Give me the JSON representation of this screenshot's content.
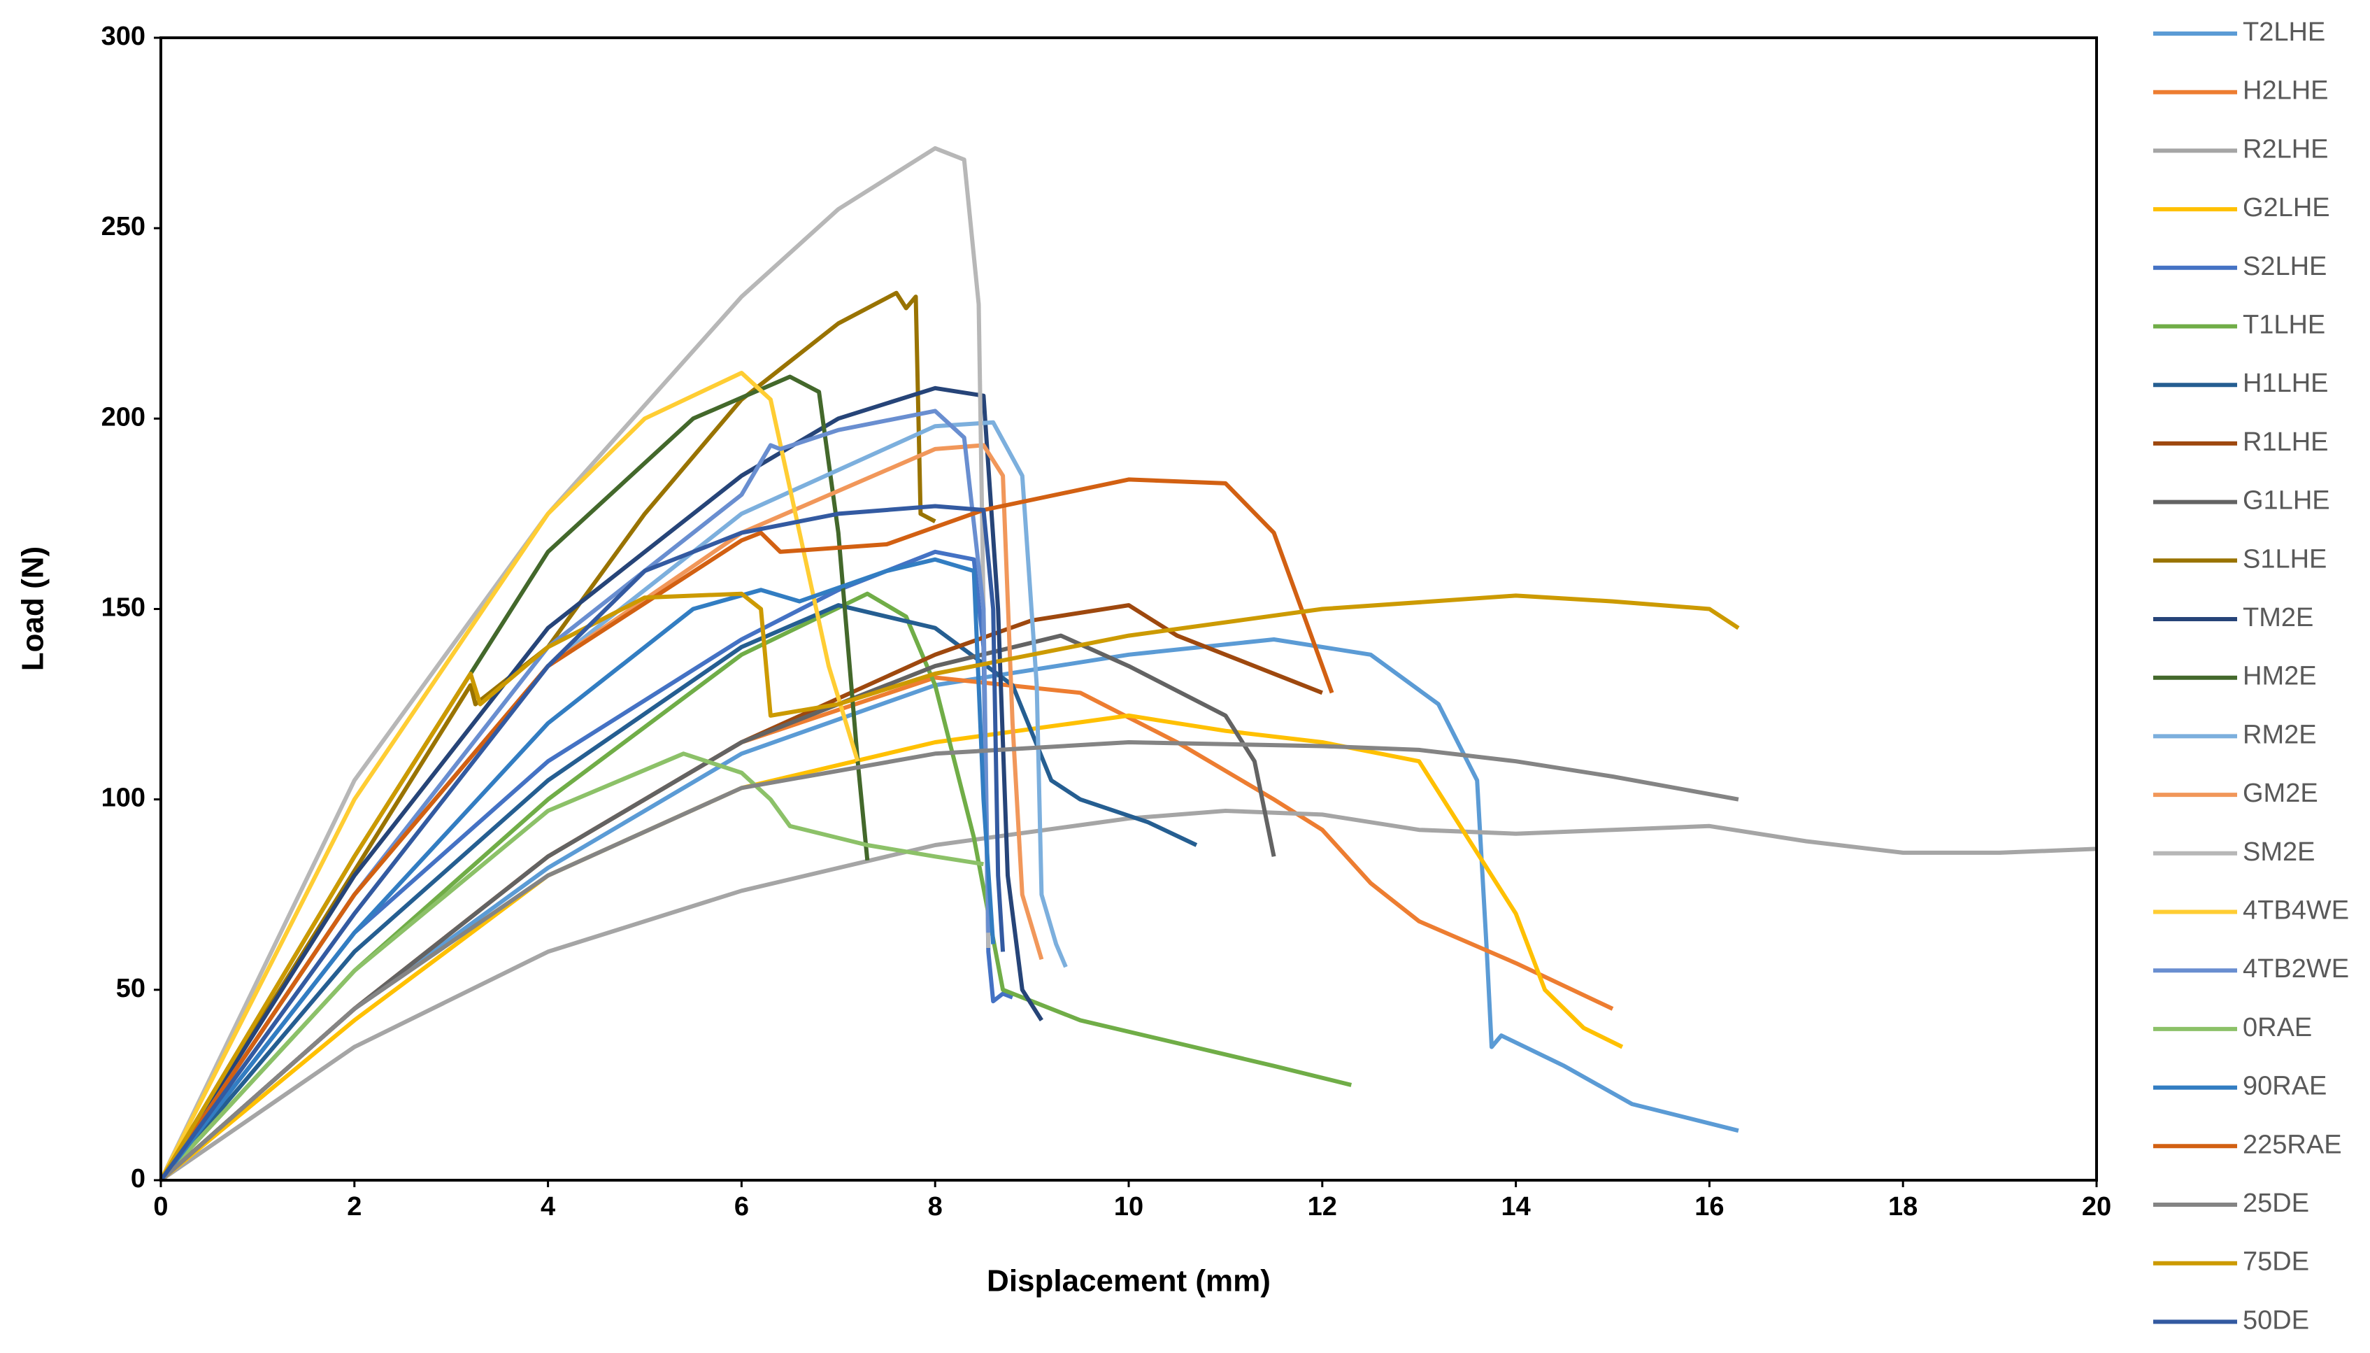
{
  "chart_data": {
    "type": "line",
    "xlabel": "Displacement (mm)",
    "ylabel": "Load (N)",
    "xlim": [
      0,
      20
    ],
    "xticks": [
      0,
      2,
      4,
      6,
      8,
      10,
      12,
      14,
      16,
      18,
      20
    ],
    "ylim": [
      0,
      300
    ],
    "yticks": [
      0,
      50,
      100,
      150,
      200,
      250,
      300
    ],
    "grid": false,
    "legend": "right",
    "series": [
      {
        "name": "T2LHE",
        "color": "#5B9BD5",
        "x": [
          0,
          2,
          4,
          6,
          8,
          10,
          11.5,
          12.5,
          13.2,
          13.6,
          13.7,
          13.75,
          13.85,
          14.5,
          15.2,
          16.3
        ],
        "values": [
          0,
          45,
          82,
          112,
          130,
          138,
          142,
          138,
          125,
          105,
          60,
          35,
          38,
          30,
          20,
          13
        ]
      },
      {
        "name": "H2LHE",
        "color": "#ED7D31",
        "x": [
          0,
          2,
          4,
          6,
          8,
          9.5,
          10.5,
          11.5,
          12,
          12.5,
          13,
          14,
          15
        ],
        "values": [
          0,
          45,
          85,
          115,
          132,
          128,
          115,
          100,
          92,
          78,
          68,
          57,
          45
        ]
      },
      {
        "name": "R2LHE",
        "color": "#A5A5A5",
        "x": [
          0,
          2,
          4,
          6,
          8,
          10,
          11,
          12,
          13,
          14,
          15,
          16,
          17,
          18,
          19,
          20
        ],
        "values": [
          0,
          35,
          60,
          76,
          88,
          95,
          97,
          96,
          92,
          91,
          92,
          93,
          89,
          86,
          86,
          87
        ]
      },
      {
        "name": "G2LHE",
        "color": "#FFC000",
        "x": [
          0,
          2,
          4,
          6,
          8,
          10,
          11,
          12,
          13,
          13.5,
          14,
          14.3,
          14.7,
          15.1
        ],
        "values": [
          0,
          42,
          80,
          103,
          115,
          122,
          118,
          115,
          110,
          90,
          70,
          50,
          40,
          35
        ]
      },
      {
        "name": "S2LHE",
        "color": "#4472C4",
        "x": [
          0,
          2,
          4,
          6,
          7,
          8,
          8.4,
          8.5,
          8.55,
          8.6,
          8.7,
          8.8
        ],
        "values": [
          0,
          65,
          110,
          142,
          155,
          165,
          163,
          140,
          60,
          47,
          49,
          48
        ]
      },
      {
        "name": "T1LHE",
        "color": "#70AD47",
        "x": [
          0,
          2,
          4,
          6,
          7.3,
          7.7,
          8,
          8.4,
          8.7,
          9.5,
          10.5,
          11.5,
          12.3
        ],
        "values": [
          0,
          55,
          100,
          138,
          154,
          148,
          130,
          90,
          50,
          42,
          36,
          30,
          25
        ]
      },
      {
        "name": "H1LHE",
        "color": "#255E91",
        "x": [
          0,
          2,
          4,
          6,
          7,
          8,
          8.8,
          9.2,
          9.5,
          10.2,
          10.7
        ],
        "values": [
          0,
          60,
          105,
          140,
          151,
          145,
          130,
          105,
          100,
          94,
          88
        ]
      },
      {
        "name": "R1LHE",
        "color": "#9E480E",
        "x": [
          0,
          2,
          4,
          6,
          8,
          9,
          10,
          10.5,
          11,
          12
        ],
        "values": [
          0,
          45,
          85,
          115,
          138,
          147,
          151,
          143,
          138,
          128
        ]
      },
      {
        "name": "G1LHE",
        "color": "#636363",
        "x": [
          0,
          2,
          4,
          6,
          8,
          9.3,
          10,
          11,
          11.3,
          11.5
        ],
        "values": [
          0,
          45,
          85,
          115,
          135,
          143,
          135,
          122,
          110,
          85
        ]
      },
      {
        "name": "S1LHE",
        "color": "#997300",
        "x": [
          0,
          3.2,
          3.25,
          4,
          5,
          6,
          7,
          7.6,
          7.7,
          7.8,
          7.85,
          8
        ],
        "values": [
          0,
          130,
          125,
          140,
          175,
          205,
          225,
          233,
          229,
          232,
          175,
          173
        ]
      },
      {
        "name": "TM2E",
        "color": "#264478",
        "x": [
          0,
          2,
          4,
          6,
          7,
          8,
          8.5,
          8.65,
          8.75,
          8.9,
          9.1
        ],
        "values": [
          0,
          80,
          145,
          185,
          200,
          208,
          206,
          150,
          80,
          50,
          42
        ]
      },
      {
        "name": "HM2E",
        "color": "#43682B",
        "x": [
          0,
          2,
          4,
          5.5,
          6.5,
          6.8,
          7,
          7.2,
          7.3
        ],
        "values": [
          0,
          85,
          165,
          200,
          211,
          207,
          170,
          110,
          84
        ]
      },
      {
        "name": "RM2E",
        "color": "#7CAFDD",
        "x": [
          0,
          2,
          4,
          6,
          8,
          8.6,
          8.9,
          9.05,
          9.1,
          9.25,
          9.35
        ],
        "values": [
          0,
          75,
          135,
          175,
          198,
          199,
          185,
          130,
          75,
          62,
          56
        ]
      },
      {
        "name": "GM2E",
        "color": "#F1975A",
        "x": [
          0,
          2,
          4,
          6,
          8,
          8.5,
          8.7,
          8.8,
          8.9,
          9.1
        ],
        "values": [
          0,
          75,
          135,
          170,
          192,
          193,
          185,
          120,
          75,
          58
        ]
      },
      {
        "name": "SM2E",
        "color": "#B7B7B7",
        "x": [
          0,
          2,
          4,
          6,
          7,
          8,
          8.3,
          8.45,
          8.5,
          8.55
        ],
        "values": [
          0,
          105,
          175,
          232,
          255,
          271,
          268,
          230,
          150,
          61
        ]
      },
      {
        "name": "4TB4WE",
        "color": "#FFCD33",
        "x": [
          0,
          2,
          4,
          5,
          6,
          6.3,
          6.6,
          6.9,
          7.2
        ],
        "values": [
          0,
          100,
          175,
          200,
          212,
          205,
          170,
          135,
          110
        ]
      },
      {
        "name": "4TB2WE",
        "color": "#698ED0",
        "x": [
          0,
          2,
          4,
          6,
          6.3,
          6.4,
          7,
          8,
          8.3,
          8.5,
          8.55
        ],
        "values": [
          0,
          75,
          140,
          180,
          193,
          192,
          197,
          202,
          195,
          150,
          65
        ]
      },
      {
        "name": "0RAE",
        "color": "#8CC168",
        "x": [
          0,
          2,
          4,
          5.4,
          6,
          6.3,
          6.5,
          7.3,
          8,
          8.5
        ],
        "values": [
          0,
          55,
          97,
          112,
          107,
          100,
          93,
          88,
          85,
          83
        ]
      },
      {
        "name": "90RAE",
        "color": "#327DC2",
        "x": [
          0,
          2,
          4,
          5.5,
          6.2,
          6.6,
          7.5,
          8,
          8.4,
          8.5,
          8.6
        ],
        "values": [
          0,
          65,
          120,
          150,
          155,
          152,
          160,
          163,
          160,
          100,
          62
        ]
      },
      {
        "name": "225RAE",
        "color": "#D26012",
        "x": [
          0,
          2,
          4,
          6,
          6.2,
          6.4,
          7.5,
          8.5,
          10,
          11,
          11.5,
          12,
          12.1
        ],
        "values": [
          0,
          75,
          135,
          168,
          170,
          165,
          167,
          176,
          184,
          183,
          170,
          135,
          128
        ]
      },
      {
        "name": "25DE",
        "color": "#848484",
        "x": [
          0,
          2,
          4,
          6,
          8,
          10,
          12,
          13,
          14,
          15,
          16.3
        ],
        "values": [
          0,
          45,
          80,
          103,
          112,
          115,
          114,
          113,
          110,
          106,
          100
        ]
      },
      {
        "name": "75DE",
        "color": "#CC9A00",
        "x": [
          0,
          2,
          3.2,
          3.3,
          4,
          5,
          6,
          6.2,
          6.3,
          7,
          8,
          10,
          12,
          14,
          15,
          16,
          16.3
        ],
        "values": [
          0,
          85,
          133,
          125,
          140,
          153,
          154,
          150,
          122,
          125,
          133,
          143,
          150,
          153.5,
          152,
          150,
          145
        ]
      },
      {
        "name": "50DE",
        "color": "#335AA1",
        "x": [
          0,
          2,
          4,
          5,
          6,
          7,
          8,
          8.5,
          8.6,
          8.65,
          8.7
        ],
        "values": [
          0,
          70,
          135,
          160,
          170,
          175,
          177,
          176,
          150,
          80,
          60
        ]
      }
    ]
  }
}
